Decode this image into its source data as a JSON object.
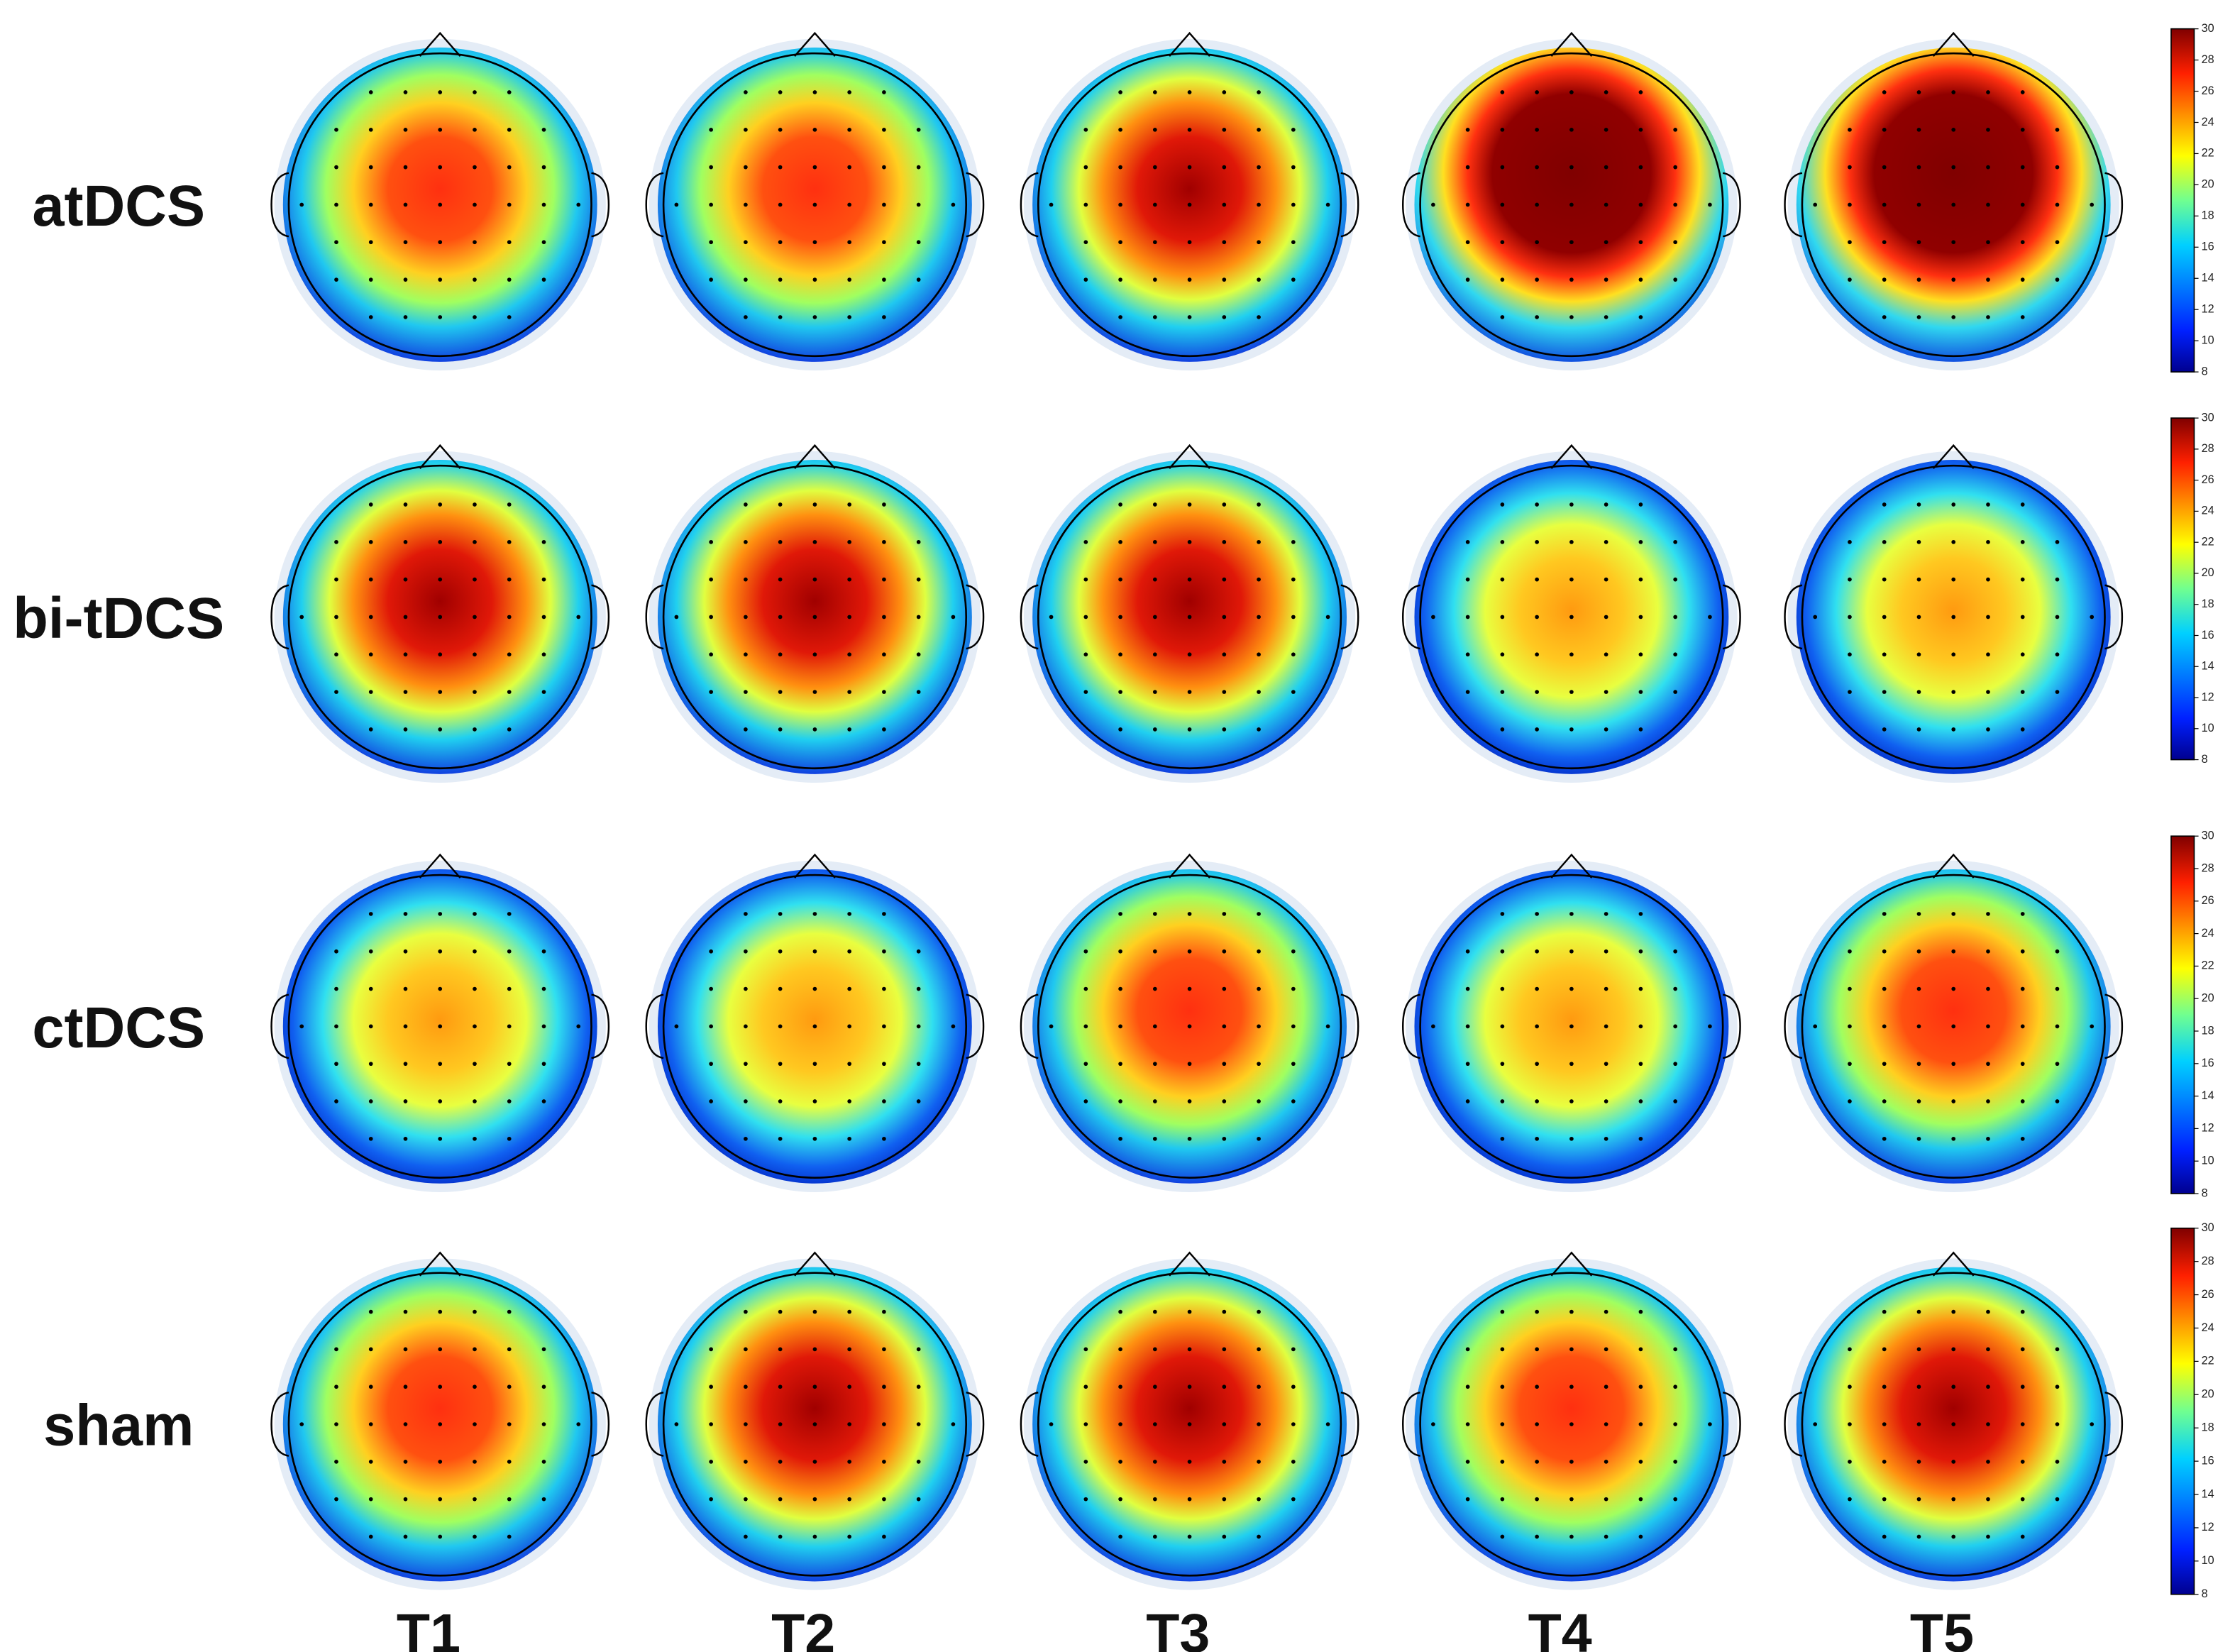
{
  "rows": [
    "atDCS",
    "bi-tDCS",
    "ctDCS",
    "sham"
  ],
  "columns": [
    "T1",
    "T2",
    "T3",
    "T4",
    "T5"
  ],
  "colorbars": [
    {
      "ticks": [
        8,
        10,
        12,
        14,
        16,
        18,
        20,
        22,
        24,
        26,
        28,
        30
      ]
    },
    {
      "ticks": [
        8,
        10,
        12,
        14,
        16,
        18,
        20,
        22,
        24,
        26,
        28,
        30
      ]
    },
    {
      "ticks": [
        8,
        10,
        12,
        14,
        16,
        18,
        20,
        22,
        24,
        26,
        28,
        30
      ]
    },
    {
      "ticks": [
        8,
        10,
        12,
        14,
        16,
        18,
        20,
        22,
        24,
        26,
        28,
        30
      ]
    }
  ]
}
